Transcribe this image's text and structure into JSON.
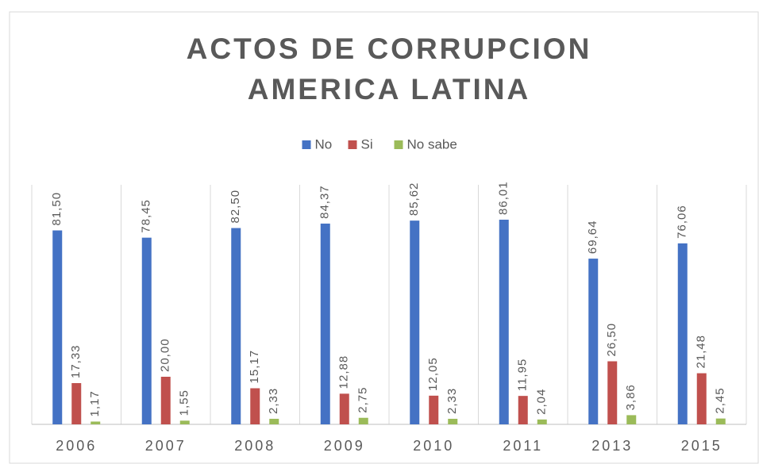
{
  "chart_data": {
    "type": "bar",
    "title": [
      "ACTOS DE CORRUPCION",
      "AMERICA LATINA"
    ],
    "categories": [
      "2006",
      "2007",
      "2008",
      "2009",
      "2010",
      "2011",
      "2013",
      "2015"
    ],
    "series": [
      {
        "name": "No",
        "color": "#4472c4",
        "values": [
          81.5,
          78.45,
          82.5,
          84.37,
          85.62,
          86.01,
          69.64,
          76.06
        ],
        "value_labels": [
          "81,50",
          "78,45",
          "82,50",
          "84,37",
          "85,62",
          "86,01",
          "69,64",
          "76,06"
        ]
      },
      {
        "name": "Si",
        "color": "#c0504d",
        "values": [
          17.33,
          20.0,
          15.17,
          12.88,
          12.05,
          11.95,
          26.5,
          21.48
        ],
        "value_labels": [
          "17,33",
          "20,00",
          "15,17",
          "12,88",
          "12,05",
          "11,95",
          "26,50",
          "21,48"
        ]
      },
      {
        "name": "No sabe",
        "color": "#9bbb59",
        "values": [
          1.17,
          1.55,
          2.33,
          2.75,
          2.33,
          2.04,
          3.86,
          2.45
        ],
        "value_labels": [
          "1,17",
          "1,55",
          "2,33",
          "2,75",
          "2,33",
          "2,04",
          "3,86",
          "2,45"
        ]
      }
    ],
    "ylim": [
      0,
      100
    ],
    "legend": "top"
  }
}
